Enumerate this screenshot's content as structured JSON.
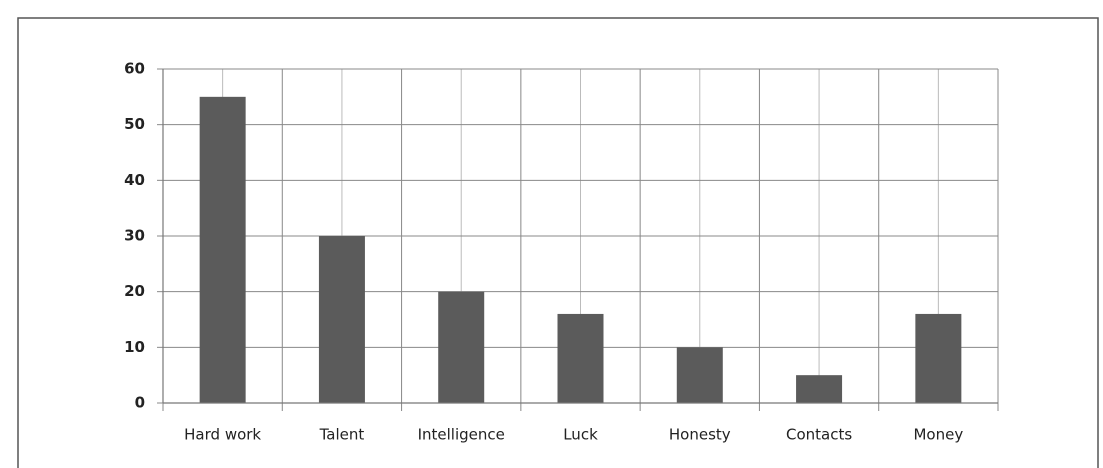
{
  "chart_data": {
    "type": "bar",
    "categories": [
      "Hard work",
      "Talent",
      "Intelligence",
      "Luck",
      "Honesty",
      "Contacts",
      "Money"
    ],
    "values": [
      55,
      30,
      20,
      16,
      10,
      5,
      16
    ],
    "color": "#5b5b5b",
    "ylim": [
      0,
      60
    ],
    "yticks": [
      0,
      10,
      20,
      30,
      40,
      50,
      60
    ],
    "grid": true
  }
}
